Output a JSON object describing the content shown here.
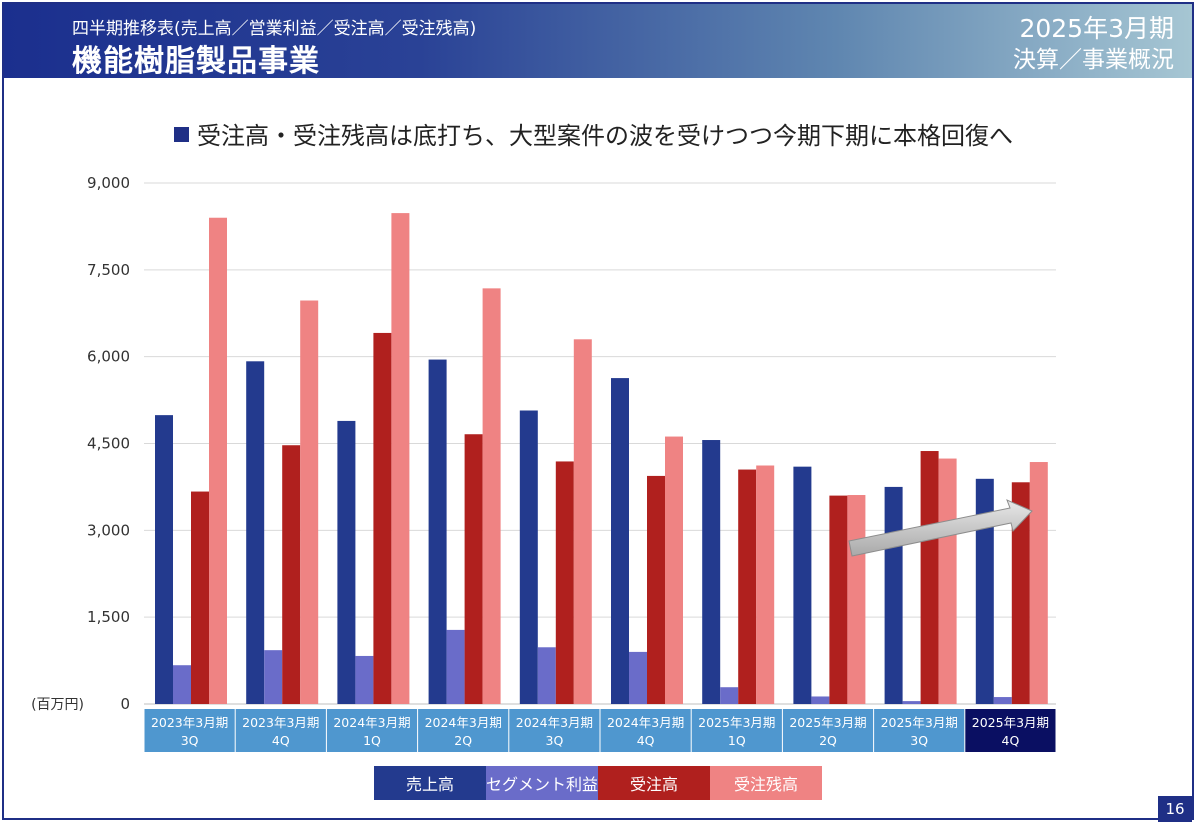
{
  "header": {
    "subtitle": "四半期推移表(売上高／営業利益／受注高／受注残高)",
    "title": "機能樹脂製品事業",
    "period": "2025年3月期",
    "overview": "決算／事業概況"
  },
  "headline": "受注高・受注残高は底打ち、大型案件の波を受けつつ今期下期に本格回復へ",
  "page_number": "16",
  "chart_data": {
    "type": "bar",
    "unit_label": "(百万円)",
    "ylim": [
      0,
      9000
    ],
    "yticks": [
      "0",
      "1,500",
      "3,000",
      "4,500",
      "6,000",
      "7,500",
      "9,000"
    ],
    "grid": true,
    "legend_position": "bottom",
    "categories": [
      {
        "year": "2023年3月期",
        "q": "3Q"
      },
      {
        "year": "2023年3月期",
        "q": "4Q"
      },
      {
        "year": "2024年3月期",
        "q": "1Q"
      },
      {
        "year": "2024年3月期",
        "q": "2Q"
      },
      {
        "year": "2024年3月期",
        "q": "3Q"
      },
      {
        "year": "2024年3月期",
        "q": "4Q"
      },
      {
        "year": "2025年3月期",
        "q": "1Q"
      },
      {
        "year": "2025年3月期",
        "q": "2Q"
      },
      {
        "year": "2025年3月期",
        "q": "3Q"
      },
      {
        "year": "2025年3月期",
        "q": "4Q"
      }
    ],
    "category_bg": "#4f97cf",
    "category_bg_highlight": "#0a0f62",
    "series": [
      {
        "name": "売上高",
        "color": "#233a8e",
        "values": [
          4990,
          5920,
          4890,
          5950,
          5070,
          5630,
          4560,
          4100,
          3750,
          3890
        ]
      },
      {
        "name": "セグメント利益",
        "color": "#6a6cc9",
        "values": [
          670,
          930,
          830,
          1280,
          980,
          900,
          290,
          130,
          50,
          120
        ]
      },
      {
        "name": "受注高",
        "color": "#b0201e",
        "values": [
          3670,
          4470,
          6410,
          4660,
          4190,
          3940,
          4050,
          3600,
          4370,
          3830
        ]
      },
      {
        "name": "受注残高",
        "color": "#ef8383",
        "values": [
          8400,
          6970,
          8480,
          7180,
          6300,
          4620,
          4120,
          3610,
          4240,
          4180
        ]
      }
    ]
  }
}
